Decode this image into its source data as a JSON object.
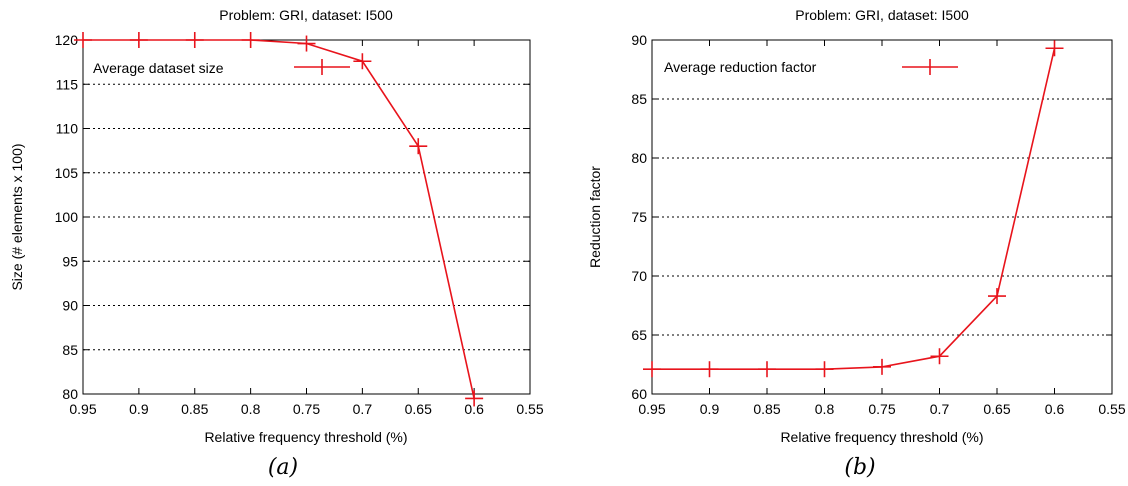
{
  "chart_data": [
    {
      "type": "line",
      "title": "Problem: GRI, dataset: I500",
      "xlabel": "Relative frequency threshold (%)",
      "ylabel": "Size (# elements x 100)",
      "caption": "(a)",
      "xlim": [
        0.95,
        0.55
      ],
      "x_reversed": true,
      "ylim": [
        80,
        120
      ],
      "x_ticks": [
        "0.95",
        "0.9",
        "0.85",
        "0.8",
        "0.75",
        "0.7",
        "0.65",
        "0.6",
        "0.55"
      ],
      "y_ticks": [
        "120",
        "115",
        "110",
        "105",
        "100",
        "95",
        "90",
        "85",
        "80"
      ],
      "grid": "horizontal-dashed",
      "legend_position": "top-left",
      "series": [
        {
          "name": "Average dataset size",
          "color": "#e8141c",
          "x": [
            0.95,
            0.9,
            0.85,
            0.8,
            0.75,
            0.7,
            0.65,
            0.6
          ],
          "y": [
            120,
            120,
            120,
            120,
            119.6,
            117.6,
            108,
            79.5
          ]
        }
      ]
    },
    {
      "type": "line",
      "title": "Problem: GRI, dataset: I500",
      "xlabel": "Relative frequency threshold (%)",
      "ylabel": "Reduction factor",
      "caption": "(b)",
      "xlim": [
        0.95,
        0.55
      ],
      "x_reversed": true,
      "ylim": [
        60,
        90
      ],
      "x_ticks": [
        "0.95",
        "0.9",
        "0.85",
        "0.8",
        "0.75",
        "0.7",
        "0.65",
        "0.6",
        "0.55"
      ],
      "y_ticks": [
        "90",
        "85",
        "80",
        "75",
        "70",
        "65",
        "60"
      ],
      "grid": "horizontal-dashed",
      "legend_position": "top-left",
      "series": [
        {
          "name": "Average reduction factor",
          "color": "#e8141c",
          "x": [
            0.95,
            0.9,
            0.85,
            0.8,
            0.75,
            0.7,
            0.65,
            0.6
          ],
          "y": [
            62.1,
            62.1,
            62.1,
            62.1,
            62.3,
            63.2,
            68.3,
            89.3
          ]
        }
      ]
    }
  ]
}
